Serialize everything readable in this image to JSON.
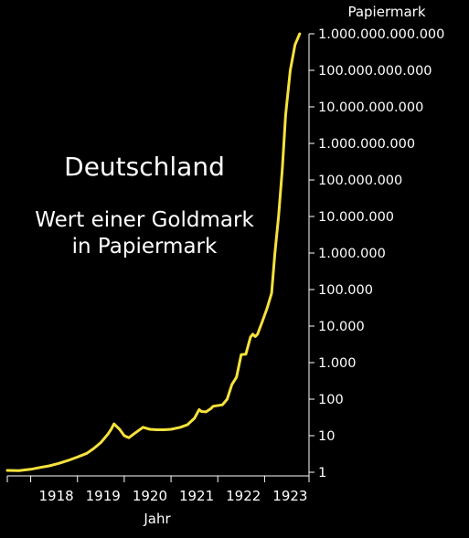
{
  "chart_data": {
    "type": "line",
    "title": "Deutschland",
    "subtitle_lines": [
      "Wert einer Goldmark",
      "in Papiermark"
    ],
    "xlabel": "Jahr",
    "ylabel": "Papiermark",
    "yscale": "log",
    "ylim": [
      1,
      1000000000000
    ],
    "xlim": [
      1917.5,
      1923.95
    ],
    "grid": false,
    "line_color": "#f5e23c",
    "background": "#000000",
    "x_ticks": [
      1918,
      1919,
      1920,
      1921,
      1922,
      1923
    ],
    "y_ticks": [
      {
        "value": 1,
        "label": "1"
      },
      {
        "value": 10,
        "label": "10"
      },
      {
        "value": 100,
        "label": "100"
      },
      {
        "value": 1000,
        "label": "1.000"
      },
      {
        "value": 10000,
        "label": "10.000"
      },
      {
        "value": 100000,
        "label": "100.000"
      },
      {
        "value": 1000000,
        "label": "1.000.000"
      },
      {
        "value": 10000000,
        "label": "10.000.000"
      },
      {
        "value": 100000000,
        "label": "100.000.000"
      },
      {
        "value": 1000000000,
        "label": "1.000.000.000"
      },
      {
        "value": 10000000000,
        "label": "10.000.000.000"
      },
      {
        "value": 100000000000,
        "label": "100.000.000.000"
      },
      {
        "value": 1000000000000,
        "label": "1.000.000.000.000"
      }
    ],
    "series": [
      {
        "points": [
          [
            1917.5,
            1.12
          ],
          [
            1917.75,
            1.1
          ],
          [
            1918.0,
            1.2
          ],
          [
            1918.2,
            1.35
          ],
          [
            1918.4,
            1.5
          ],
          [
            1918.6,
            1.75
          ],
          [
            1918.8,
            2.1
          ],
          [
            1919.0,
            2.6
          ],
          [
            1919.2,
            3.3
          ],
          [
            1919.35,
            4.5
          ],
          [
            1919.5,
            6.5
          ],
          [
            1919.65,
            11
          ],
          [
            1919.72,
            15
          ],
          [
            1919.78,
            21
          ],
          [
            1919.9,
            15
          ],
          [
            1920.0,
            10
          ],
          [
            1920.1,
            8.8
          ],
          [
            1920.2,
            11
          ],
          [
            1920.4,
            17
          ],
          [
            1920.55,
            15
          ],
          [
            1920.7,
            14.5
          ],
          [
            1920.85,
            14.5
          ],
          [
            1921.0,
            15
          ],
          [
            1921.2,
            17
          ],
          [
            1921.35,
            20
          ],
          [
            1921.5,
            30
          ],
          [
            1921.6,
            52
          ],
          [
            1921.65,
            46
          ],
          [
            1921.75,
            45
          ],
          [
            1921.85,
            55
          ],
          [
            1921.9,
            64
          ],
          [
            1922.1,
            70
          ],
          [
            1922.2,
            100
          ],
          [
            1922.3,
            250
          ],
          [
            1922.4,
            400
          ],
          [
            1922.5,
            1650
          ],
          [
            1922.6,
            1700
          ],
          [
            1922.7,
            5000
          ],
          [
            1922.75,
            6000
          ],
          [
            1922.8,
            5200
          ],
          [
            1922.85,
            6000
          ],
          [
            1922.95,
            13000
          ],
          [
            1923.05,
            30000
          ],
          [
            1923.15,
            80000
          ],
          [
            1923.22,
            1000000
          ],
          [
            1923.3,
            10000000
          ],
          [
            1923.38,
            200000000
          ],
          [
            1923.45,
            6000000000
          ],
          [
            1923.55,
            100000000000
          ],
          [
            1923.65,
            500000000000
          ],
          [
            1923.75,
            1000000000000
          ]
        ]
      }
    ]
  }
}
